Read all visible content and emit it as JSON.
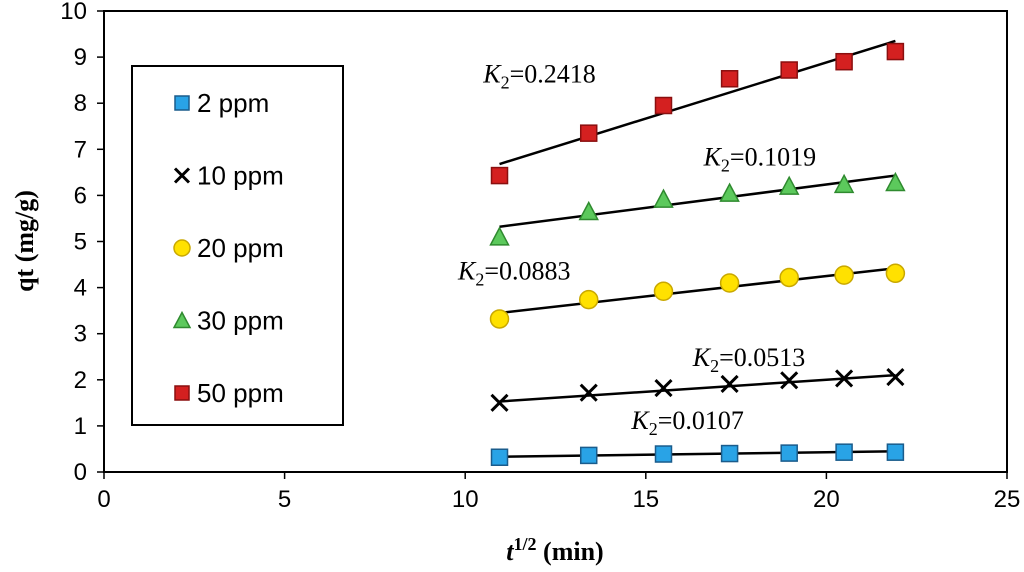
{
  "chart_data": {
    "type": "scatter",
    "xlabel": {
      "base": "t",
      "sup": "1/2",
      "unit": " (min)"
    },
    "ylabel": "qt (mg/g)",
    "xlim": [
      0,
      25
    ],
    "ylim": [
      0,
      10
    ],
    "xticks": [
      0,
      5,
      10,
      15,
      20,
      25
    ],
    "yticks": [
      0,
      1,
      2,
      3,
      4,
      5,
      6,
      7,
      8,
      9,
      10
    ],
    "grid": false,
    "legend_position": "top-left",
    "x": [
      10.95,
      13.42,
      15.49,
      17.32,
      18.97,
      20.49,
      21.91
    ],
    "series": [
      {
        "name": "2 ppm",
        "marker": "square",
        "color": "#29a3e6",
        "stroke": "#1a5c8c",
        "values": [
          0.32,
          0.36,
          0.39,
          0.4,
          0.41,
          0.43,
          0.43
        ],
        "fit": [
          [
            10.95,
            0.33
          ],
          [
            21.91,
            0.45
          ]
        ],
        "annotation": {
          "K": "K",
          "sub": "2",
          "rest": "=0.0107",
          "at": [
            14.6,
            0.93
          ]
        }
      },
      {
        "name": "10 ppm",
        "marker": "x",
        "color": "#000000",
        "stroke": "#000000",
        "values": [
          1.5,
          1.72,
          1.82,
          1.91,
          1.99,
          2.03,
          2.06
        ],
        "fit": [
          [
            10.95,
            1.53
          ],
          [
            21.91,
            2.1
          ]
        ],
        "annotation": {
          "K": "K",
          "sub": "2",
          "rest": "=0.0513",
          "at": [
            16.3,
            2.3
          ]
        }
      },
      {
        "name": "20 ppm",
        "marker": "circle",
        "color": "#ffe100",
        "stroke": "#c9a800",
        "values": [
          3.32,
          3.74,
          3.92,
          4.1,
          4.22,
          4.27,
          4.31
        ],
        "fit": [
          [
            10.95,
            3.45
          ],
          [
            21.91,
            4.42
          ]
        ],
        "annotation": {
          "K": "K",
          "sub": "2",
          "rest": "=0.0883",
          "at": [
            9.8,
            4.18
          ]
        }
      },
      {
        "name": "30 ppm",
        "marker": "triangle",
        "color": "#5cc95c",
        "stroke": "#2f8a2f",
        "values": [
          5.1,
          5.65,
          5.92,
          6.05,
          6.2,
          6.24,
          6.28
        ],
        "fit": [
          [
            10.95,
            5.32
          ],
          [
            21.91,
            6.43
          ]
        ],
        "annotation": {
          "K": "K",
          "sub": "2",
          "rest": "=0.1019",
          "at": [
            16.6,
            6.65
          ]
        }
      },
      {
        "name": "50 ppm",
        "marker": "square",
        "color": "#d42020",
        "stroke": "#8a0f0f",
        "values": [
          6.43,
          7.35,
          7.95,
          8.53,
          8.72,
          8.9,
          9.12
        ],
        "fit": [
          [
            10.95,
            6.68
          ],
          [
            21.91,
            9.35
          ]
        ],
        "annotation": {
          "K": "K",
          "sub": "2",
          "rest": "=0.2418",
          "at": [
            10.5,
            8.45
          ]
        }
      }
    ]
  }
}
